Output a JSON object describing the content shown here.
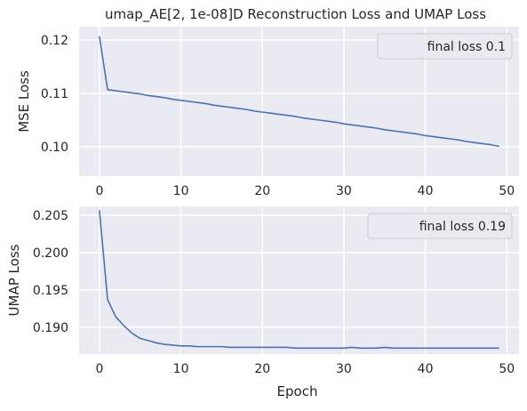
{
  "chart_data": [
    {
      "type": "line",
      "title": "umap_AE[2, 1e-08]D Reconstruction Loss and UMAP Loss",
      "xlabel": "",
      "ylabel": "MSE Loss",
      "xlim": [
        -2.5,
        51.5
      ],
      "ylim": [
        0.0945,
        0.1225
      ],
      "xticks": [
        0,
        10,
        20,
        30,
        40,
        50
      ],
      "yticks": [
        0.1,
        0.11,
        0.12
      ],
      "ytick_labels": [
        "0.10",
        "0.11",
        "0.12"
      ],
      "grid": true,
      "legend_position": "top-right",
      "legend_label": "final loss 0.1",
      "line_color": "#4c72b0",
      "series": [
        {
          "name": "final loss 0.1",
          "x": [
            0,
            1,
            2,
            3,
            4,
            5,
            6,
            7,
            8,
            9,
            10,
            11,
            12,
            13,
            14,
            15,
            16,
            17,
            18,
            19,
            20,
            21,
            22,
            23,
            24,
            25,
            26,
            27,
            28,
            29,
            30,
            31,
            32,
            33,
            34,
            35,
            36,
            37,
            38,
            39,
            40,
            41,
            42,
            43,
            44,
            45,
            46,
            47,
            48,
            49
          ],
          "values": [
            0.1206,
            0.1107,
            0.1105,
            0.1103,
            0.1101,
            0.1099,
            0.1096,
            0.1094,
            0.1092,
            0.1089,
            0.1087,
            0.1085,
            0.1083,
            0.1081,
            0.1078,
            0.1076,
            0.1074,
            0.1072,
            0.107,
            0.1067,
            0.1065,
            0.1063,
            0.1061,
            0.1059,
            0.1057,
            0.1054,
            0.1052,
            0.105,
            0.1048,
            0.1046,
            0.1043,
            0.1041,
            0.1039,
            0.1037,
            0.1035,
            0.1032,
            0.103,
            0.1028,
            0.1026,
            0.1024,
            0.1021,
            0.1019,
            0.1017,
            0.1015,
            0.1013,
            0.101,
            0.1008,
            0.1006,
            0.1004,
            0.1001
          ]
        }
      ]
    },
    {
      "type": "line",
      "title": "",
      "xlabel": "Epoch",
      "ylabel": "UMAP Loss",
      "xlim": [
        -2.5,
        51.5
      ],
      "ylim": [
        0.1864,
        0.2062
      ],
      "xticks": [
        0,
        10,
        20,
        30,
        40,
        50
      ],
      "yticks": [
        0.19,
        0.195,
        0.2,
        0.205
      ],
      "ytick_labels": [
        "0.190",
        "0.195",
        "0.200",
        "0.205"
      ],
      "grid": true,
      "legend_position": "top-right",
      "legend_label": "final loss 0.19",
      "line_color": "#4c72b0",
      "series": [
        {
          "name": "final loss 0.19",
          "x": [
            0,
            1,
            2,
            3,
            4,
            5,
            6,
            7,
            8,
            9,
            10,
            11,
            12,
            13,
            14,
            15,
            16,
            17,
            18,
            19,
            20,
            21,
            22,
            23,
            24,
            25,
            26,
            27,
            28,
            29,
            30,
            31,
            32,
            33,
            34,
            35,
            36,
            37,
            38,
            39,
            40,
            41,
            42,
            43,
            44,
            45,
            46,
            47,
            48,
            49
          ],
          "values": [
            0.2056,
            0.1937,
            0.1914,
            0.1902,
            0.1892,
            0.1885,
            0.1882,
            0.1879,
            0.1877,
            0.1876,
            0.1875,
            0.1875,
            0.1874,
            0.1874,
            0.1874,
            0.1874,
            0.1873,
            0.1873,
            0.1873,
            0.1873,
            0.1873,
            0.1873,
            0.1873,
            0.1873,
            0.1872,
            0.1872,
            0.1872,
            0.1872,
            0.1872,
            0.1872,
            0.1872,
            0.1873,
            0.1872,
            0.1872,
            0.1872,
            0.1873,
            0.1872,
            0.1872,
            0.1872,
            0.1872,
            0.1872,
            0.1872,
            0.1872,
            0.1872,
            0.1872,
            0.1872,
            0.1872,
            0.1872,
            0.1872,
            0.1872
          ]
        }
      ]
    }
  ]
}
